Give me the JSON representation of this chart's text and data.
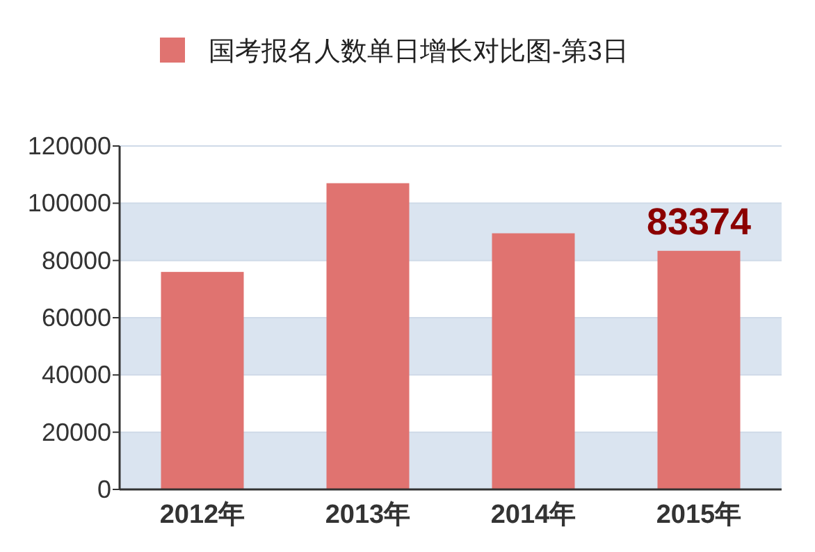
{
  "chart_data": {
    "type": "bar",
    "categories": [
      "2012年",
      "2013年",
      "2014年",
      "2015年"
    ],
    "series": [
      {
        "name": "国考报名人数单日增长对比图-第3日",
        "color": "#e07370",
        "values": [
          76000,
          107000,
          89500,
          83374
        ],
        "value_labels": [
          null,
          null,
          null,
          "83374"
        ]
      }
    ],
    "ylim": [
      0,
      120000
    ],
    "yticks": [
      0,
      20000,
      40000,
      60000,
      80000,
      100000,
      120000
    ],
    "grid": "y",
    "legend": "top"
  }
}
